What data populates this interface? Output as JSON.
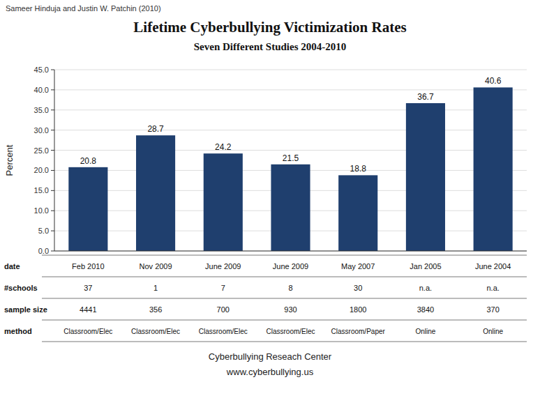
{
  "chart_data": {
    "type": "bar",
    "title": "Lifetime Cyberbullying Victimization Rates",
    "subtitle": "Seven Different Studies 2004-2010",
    "attribution": "Sameer Hinduja and Justin W. Patchin (2010)",
    "ylabel": "Percent",
    "categories": [
      "Feb 2010",
      "Nov 2009",
      "June 2009",
      "June 2009",
      "May 2007",
      "Jan 2005",
      "June 2004"
    ],
    "values": [
      20.8,
      28.7,
      24.2,
      21.5,
      18.8,
      36.7,
      40.6
    ],
    "color": "#1F3F6E",
    "ylim": [
      0,
      45
    ],
    "yticks": [
      {
        "value": 0,
        "label": "0.0"
      },
      {
        "value": 5,
        "label": "5.0"
      },
      {
        "value": 10,
        "label": "10.0"
      },
      {
        "value": 15,
        "label": "15.0"
      },
      {
        "value": 20,
        "label": "20.0"
      },
      {
        "value": 25,
        "label": "25.0"
      },
      {
        "value": 30,
        "label": "30.0"
      },
      {
        "value": 35,
        "label": "35.0"
      },
      {
        "value": 40,
        "label": "40.0"
      },
      {
        "value": 45,
        "label": "45.0"
      }
    ],
    "grid": true,
    "data_labels": true,
    "category_label": "date",
    "table": [
      {
        "label": "#schools",
        "values": [
          "37",
          "1",
          "7",
          "8",
          "30",
          "n.a.",
          "n.a."
        ]
      },
      {
        "label": "sample size",
        "values": [
          "4441",
          "356",
          "700",
          "930",
          "1800",
          "3840",
          "370"
        ]
      },
      {
        "label": "method",
        "values": [
          "Classroom/Elec",
          "Classroom/Elec",
          "Classroom/Elec",
          "Classroom/Elec",
          "Classroom/Paper",
          "Online",
          "Online"
        ]
      }
    ],
    "footer": [
      "Cyberbullying Reseach Center",
      "www.cyberbullying.us"
    ]
  }
}
